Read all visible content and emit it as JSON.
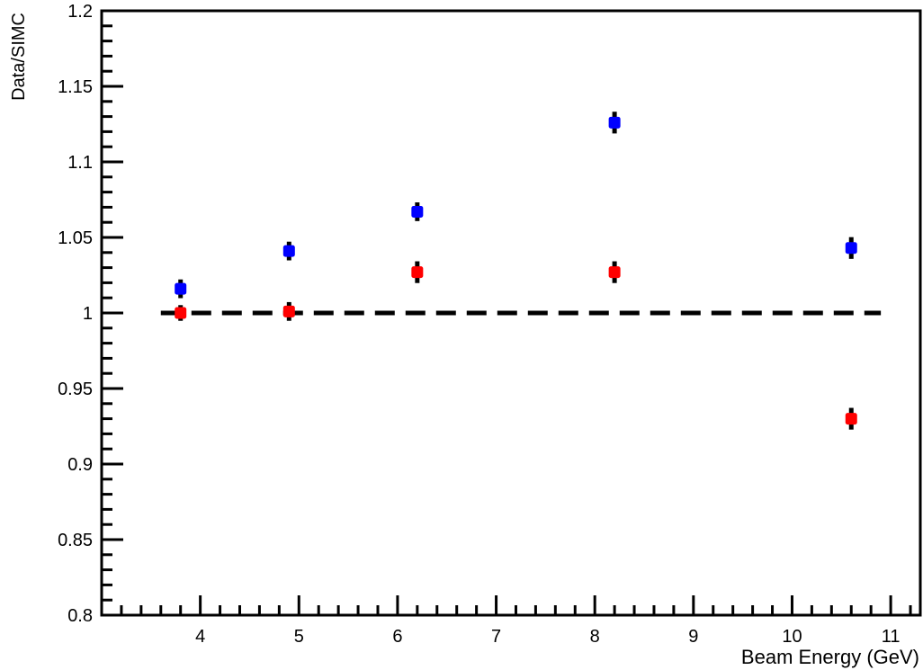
{
  "chart_data": {
    "type": "scatter",
    "title": "",
    "xlabel": "Beam Energy (GeV)",
    "ylabel": "Data/SIMC",
    "xlim": [
      3.0,
      11.3
    ],
    "ylim": [
      0.8,
      1.2
    ],
    "x_ticks": [
      "4",
      "5",
      "6",
      "7",
      "8",
      "9",
      "10",
      "11"
    ],
    "y_ticks": [
      "0.8",
      "0.85",
      "0.9",
      "0.95",
      "1",
      "1.05",
      "1.1",
      "1.15",
      "1.2"
    ],
    "grid": false,
    "reference_line": {
      "y": 1.0,
      "x_from": 3.6,
      "x_to": 10.9,
      "style": "dashed",
      "color": "#000000"
    },
    "series": [
      {
        "color": "#0000ff",
        "points": [
          {
            "x": 3.8,
            "y": 1.016,
            "err": 0.005
          },
          {
            "x": 4.9,
            "y": 1.041,
            "err": 0.005
          },
          {
            "x": 6.2,
            "y": 1.067,
            "err": 0.005
          },
          {
            "x": 8.2,
            "y": 1.126,
            "err": 0.006
          },
          {
            "x": 10.6,
            "y": 1.043,
            "err": 0.006
          }
        ]
      },
      {
        "color": "#ff0000",
        "points": [
          {
            "x": 3.8,
            "y": 1.0,
            "err": 0.004
          },
          {
            "x": 4.9,
            "y": 1.001,
            "err": 0.005
          },
          {
            "x": 6.2,
            "y": 1.027,
            "err": 0.006
          },
          {
            "x": 8.2,
            "y": 1.027,
            "err": 0.006
          },
          {
            "x": 10.6,
            "y": 0.93,
            "err": 0.006
          }
        ]
      }
    ]
  }
}
